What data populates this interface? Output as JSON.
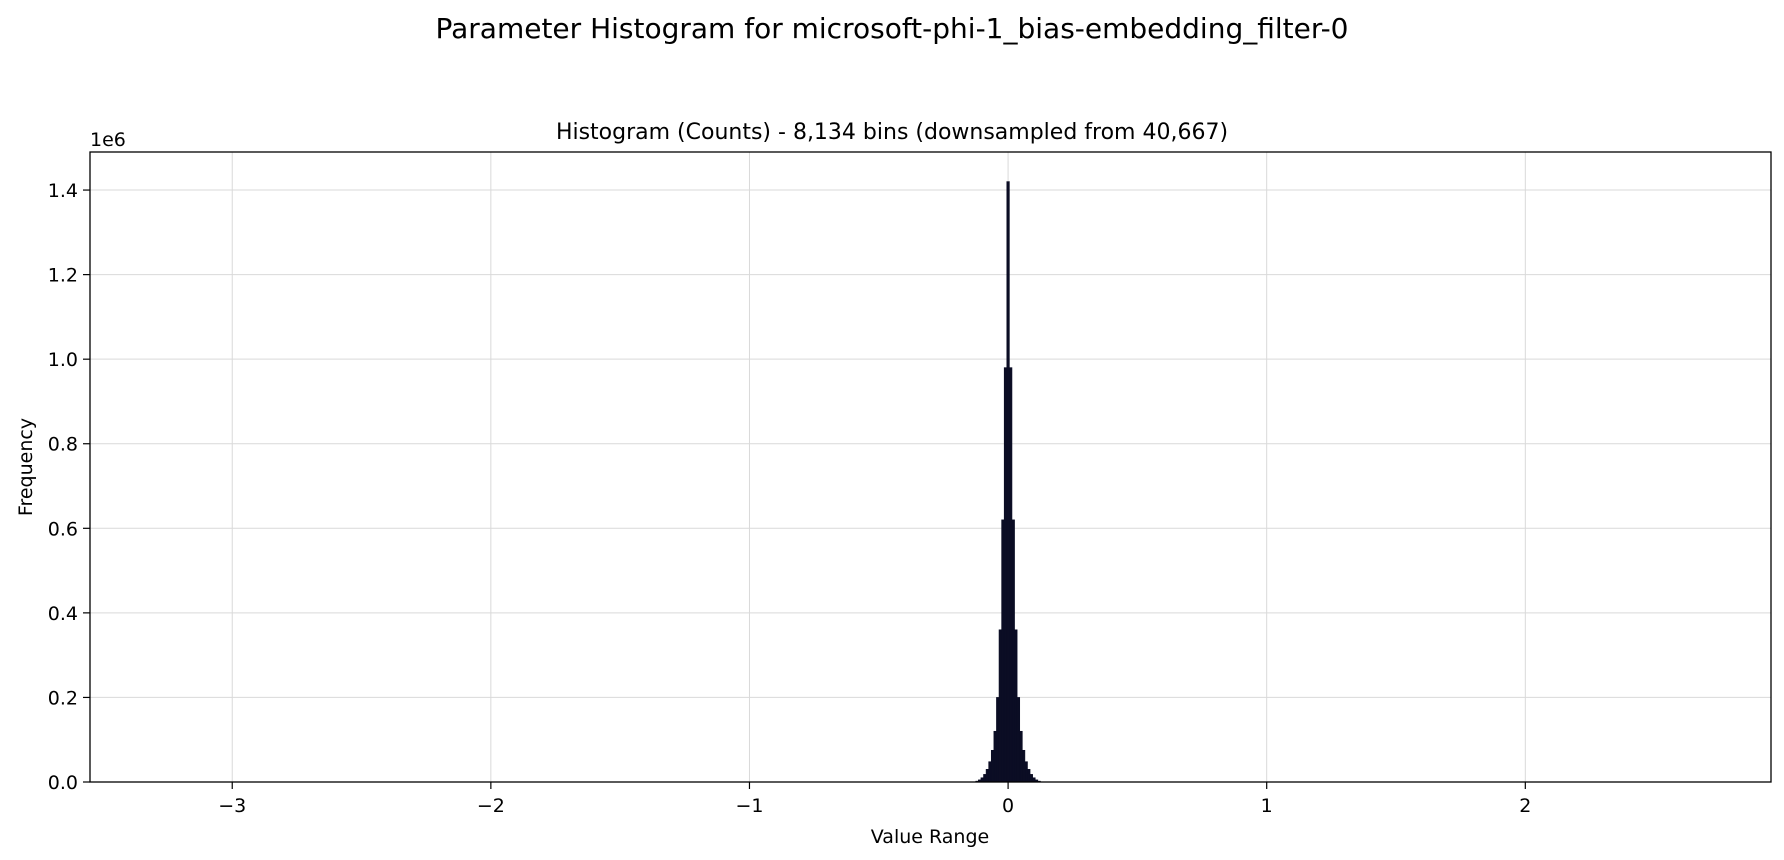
{
  "figure": {
    "suptitle": "Parameter Histogram for microsoft-phi-1_bias-embedding_filter-0"
  },
  "chart_data": {
    "type": "bar",
    "title": "Histogram (Counts) - 8,134 bins (downsampled from 40,667)",
    "xlabel": "Value Range",
    "ylabel": "Frequency",
    "y_scale_label": "1e6",
    "xlim": [
      -3.55,
      2.95
    ],
    "ylim": [
      0,
      1.49
    ],
    "x_ticks": [
      -3,
      -2,
      -1,
      0,
      1,
      2
    ],
    "x_tick_labels": [
      "−3",
      "−2",
      "−1",
      "0",
      "1",
      "2"
    ],
    "y_ticks": [
      0.0,
      0.2,
      0.4,
      0.6,
      0.8,
      1.0,
      1.2,
      1.4
    ],
    "y_tick_labels": [
      "0.0",
      "0.2",
      "0.4",
      "0.6",
      "0.8",
      "1.0",
      "1.2",
      "1.4"
    ],
    "grid": true,
    "bar_color": "#0b0d24",
    "series": [
      {
        "x": [
          -0.12,
          -0.11,
          -0.1,
          -0.09,
          -0.08,
          -0.07,
          -0.06,
          -0.05,
          -0.04,
          -0.03,
          -0.02,
          -0.01,
          0.0,
          0.01,
          0.02,
          0.03,
          0.04,
          0.05,
          0.06,
          0.07,
          0.08,
          0.09,
          0.1,
          0.11,
          0.12
        ],
        "values": [
          0.002,
          0.005,
          0.01,
          0.018,
          0.03,
          0.048,
          0.075,
          0.12,
          0.2,
          0.36,
          0.62,
          0.98,
          1.42,
          0.98,
          0.62,
          0.36,
          0.2,
          0.12,
          0.075,
          0.048,
          0.03,
          0.018,
          0.01,
          0.005,
          0.002
        ]
      }
    ]
  }
}
